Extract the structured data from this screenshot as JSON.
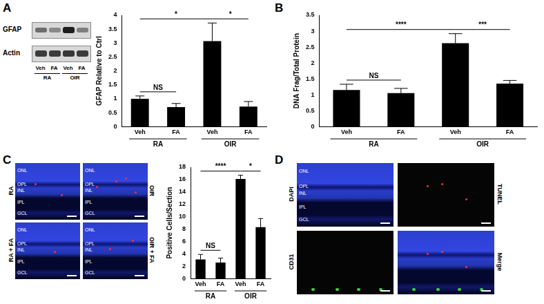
{
  "panel_labels": [
    "A",
    "B",
    "C",
    "D"
  ],
  "chart_data": [
    {
      "type": "bar",
      "y_label": "GFAP Relative to Ctrl",
      "categories": [
        "Veh",
        "FA",
        "Veh",
        "FA"
      ],
      "groups": [
        "RA",
        "RA",
        "OIR",
        "OIR"
      ],
      "values": [
        1.0,
        0.7,
        3.07,
        0.72
      ],
      "errors": [
        0.1,
        0.13,
        0.65,
        0.18
      ],
      "color": "#000000",
      "ylim": [
        0,
        4
      ],
      "yticks": [
        0,
        0.5,
        1,
        1.5,
        2,
        2.5,
        3,
        3.5,
        4
      ],
      "grid": false,
      "significance": [
        {
          "from": 0,
          "to": 1,
          "label": "NS"
        },
        {
          "from": 0,
          "to": 2,
          "label": "*"
        },
        {
          "from": 2,
          "to": 3,
          "label": "*"
        }
      ]
    },
    {
      "type": "bar",
      "y_label": "DNA Frag/Total Protein",
      "categories": [
        "Veh",
        "FA",
        "Veh",
        "FA"
      ],
      "groups": [
        "RA",
        "RA",
        "OIR",
        "OIR"
      ],
      "values": [
        1.15,
        1.05,
        2.62,
        1.35
      ],
      "errors": [
        0.18,
        0.15,
        0.3,
        0.1
      ],
      "color": "#000000",
      "ylim": [
        0,
        3.5
      ],
      "yticks": [
        0,
        0.5,
        1,
        1.5,
        2,
        2.5,
        3,
        3.5
      ],
      "grid": false,
      "significance": [
        {
          "from": 0,
          "to": 1,
          "label": "NS"
        },
        {
          "from": 0,
          "to": 2,
          "label": "****"
        },
        {
          "from": 2,
          "to": 3,
          "label": "***"
        }
      ]
    },
    {
      "type": "bar",
      "y_label": "Positive Cells/Section",
      "categories": [
        "Veh",
        "FA",
        "Veh",
        "FA"
      ],
      "groups": [
        "RA",
        "RA",
        "OIR",
        "OIR"
      ],
      "values": [
        3.1,
        2.6,
        16.1,
        8.3
      ],
      "errors": [
        0.8,
        0.7,
        0.6,
        1.4
      ],
      "color": "#000000",
      "ylim": [
        0,
        18
      ],
      "yticks": [
        0,
        2,
        4,
        6,
        8,
        10,
        12,
        14,
        16,
        18
      ],
      "grid": false,
      "significance": [
        {
          "from": 0,
          "to": 1,
          "label": "NS"
        },
        {
          "from": 0,
          "to": 2,
          "label": "****"
        },
        {
          "from": 2,
          "to": 3,
          "label": "*"
        }
      ]
    }
  ],
  "blot": {
    "rows": [
      "GFAP",
      "Actin"
    ],
    "lanes": [
      "Veh",
      "FA",
      "Veh",
      "FA"
    ],
    "groups": [
      "RA",
      "RA",
      "OIR",
      "OIR"
    ]
  },
  "micrographs_c": {
    "layers": [
      "ONL",
      "OPL",
      "INL",
      "IPL",
      "GCL"
    ],
    "images": [
      "RA",
      "OIR",
      "RA + FA",
      "OIR + FA"
    ]
  },
  "micrographs_d": {
    "layers": [
      "ONL",
      "OPL",
      "INL",
      "IPL",
      "GCL"
    ],
    "images": [
      "DAPI",
      "TUNEL",
      "CD31",
      "Merge"
    ]
  }
}
